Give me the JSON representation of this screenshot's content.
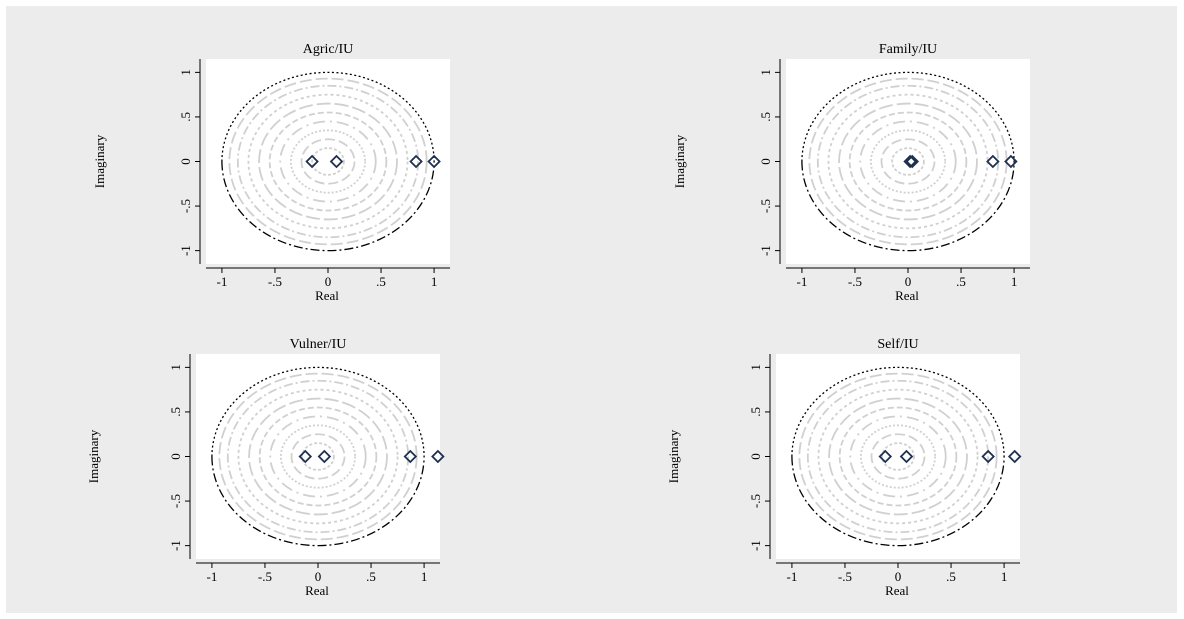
{
  "chart_data": [
    {
      "type": "scatter",
      "title": "Agric/IU",
      "xlabel": "Real",
      "ylabel": "Imaginary",
      "xticks": [
        "-1",
        "-.5",
        "0",
        ".5",
        "1"
      ],
      "yticks": [
        "-1",
        "-.5",
        "0",
        ".5",
        "1"
      ],
      "xlim": [
        -1.15,
        1.15
      ],
      "ylim": [
        -1.15,
        1.15
      ],
      "grid": false,
      "unit_circle": true,
      "marker": "diamond",
      "marker_color": "#1f2f4f",
      "points": [
        {
          "x": -0.15,
          "y": 0
        },
        {
          "x": 0.08,
          "y": 0
        },
        {
          "x": 0.83,
          "y": 0
        },
        {
          "x": 1.0,
          "y": 0
        }
      ]
    },
    {
      "type": "scatter",
      "title": "Family/IU",
      "xlabel": "Real",
      "ylabel": "Imaginary",
      "xticks": [
        "-1",
        "-.5",
        "0",
        ".5",
        "1"
      ],
      "yticks": [
        "-1",
        "-.5",
        "0",
        ".5",
        "1"
      ],
      "xlim": [
        -1.15,
        1.15
      ],
      "ylim": [
        -1.15,
        1.15
      ],
      "grid": false,
      "unit_circle": true,
      "marker": "diamond",
      "marker_color": "#1f2f4f",
      "points": [
        {
          "x": 0.02,
          "y": 0
        },
        {
          "x": 0.04,
          "y": 0
        },
        {
          "x": 0.8,
          "y": 0
        },
        {
          "x": 0.97,
          "y": 0
        }
      ]
    },
    {
      "type": "scatter",
      "title": "Vulner/IU",
      "xlabel": "Real",
      "ylabel": "Imaginary",
      "xticks": [
        "-1",
        "-.5",
        "0",
        ".5",
        "1"
      ],
      "yticks": [
        "-1",
        "-.5",
        "0",
        ".5",
        "1"
      ],
      "xlim": [
        -1.15,
        1.15
      ],
      "ylim": [
        -1.15,
        1.15
      ],
      "grid": false,
      "unit_circle": true,
      "marker": "diamond",
      "marker_color": "#1f2f4f",
      "points": [
        {
          "x": -0.12,
          "y": 0
        },
        {
          "x": 0.06,
          "y": 0
        },
        {
          "x": 0.87,
          "y": 0
        },
        {
          "x": 1.13,
          "y": 0
        }
      ]
    },
    {
      "type": "scatter",
      "title": "Self/IU",
      "xlabel": "Real",
      "ylabel": "Imaginary",
      "xticks": [
        "-1",
        "-.5",
        "0",
        ".5",
        "1"
      ],
      "yticks": [
        "-1",
        "-.5",
        "0",
        ".5",
        "1"
      ],
      "xlim": [
        -1.15,
        1.15
      ],
      "ylim": [
        -1.15,
        1.15
      ],
      "grid": false,
      "unit_circle": true,
      "marker": "diamond",
      "marker_color": "#1f2f4f",
      "points": [
        {
          "x": -0.12,
          "y": 0
        },
        {
          "x": 0.08,
          "y": 0
        },
        {
          "x": 0.85,
          "y": 0
        },
        {
          "x": 1.1,
          "y": 0
        }
      ]
    }
  ]
}
